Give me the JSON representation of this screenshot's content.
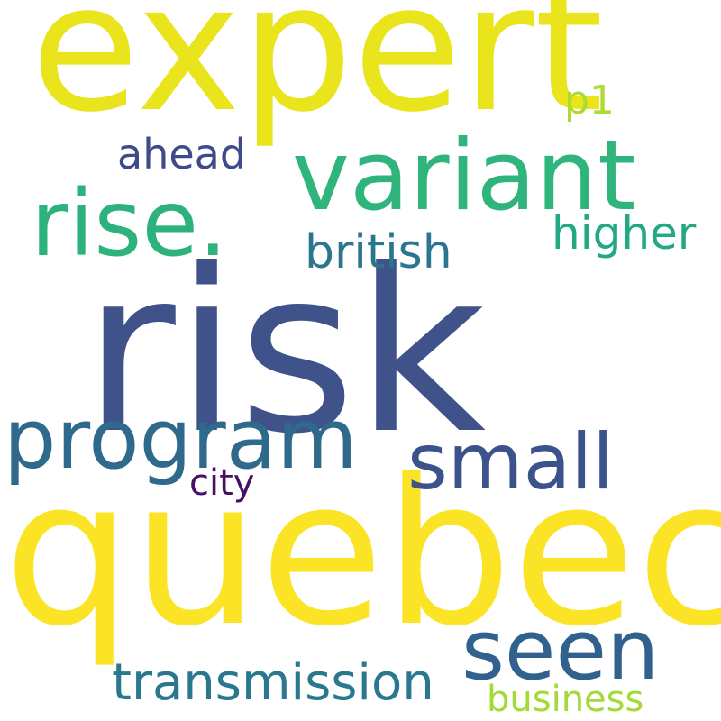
{
  "words": [
    {
      "id": "risk",
      "text": "risk",
      "color": "#3f528a"
    },
    {
      "id": "quebec",
      "text": "quebec",
      "color": "#fbe426"
    },
    {
      "id": "expert",
      "text": "expert",
      "color": "#e9e41b"
    },
    {
      "id": "variant",
      "text": "variant",
      "color": "#2fb47c"
    },
    {
      "id": "rise",
      "text": "rise.",
      "color": "#2db27d"
    },
    {
      "id": "program",
      "text": "program",
      "color": "#2f6a8d"
    },
    {
      "id": "seen",
      "text": "seen",
      "color": "#31628d"
    },
    {
      "id": "small",
      "text": "small",
      "color": "#3b528b"
    },
    {
      "id": "transmission",
      "text": "transmission",
      "color": "#2a788e"
    },
    {
      "id": "british",
      "text": "british",
      "color": "#2a768e"
    },
    {
      "id": "higher",
      "text": "higher",
      "color": "#22a884"
    },
    {
      "id": "ahead",
      "text": "ahead",
      "color": "#3e4a89"
    },
    {
      "id": "business",
      "text": "business",
      "color": "#a2da37"
    },
    {
      "id": "p1",
      "text": "p1",
      "color": "#addc30"
    },
    {
      "id": "city",
      "text": "city",
      "color": "#471063"
    }
  ]
}
